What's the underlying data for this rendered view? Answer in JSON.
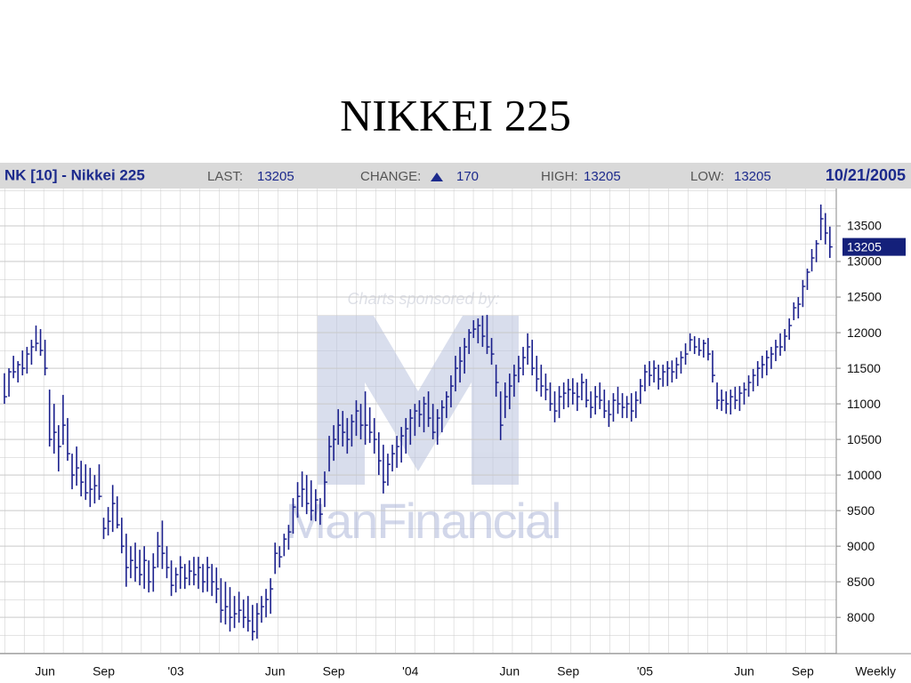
{
  "slide_title": "NIKKEI 225",
  "header": {
    "symbol": "NK [10] - Nikkei 225",
    "last_label": "LAST:",
    "last": 13205,
    "change_label": "CHANGE:",
    "change": 170,
    "high_label": "HIGH:",
    "high": 13205,
    "low_label": "LOW:",
    "low": 13205,
    "date": "10/21/2005"
  },
  "watermark": {
    "sponsor": "Charts sponsored by:",
    "brand": "ManFinancial"
  },
  "chart_data": {
    "type": "hlc",
    "color": "#1a1f8c",
    "grid": true,
    "x_axis_note": "Weekly",
    "price_marker": 13205,
    "ylim": [
      7490,
      14025
    ],
    "yticks": [
      8000,
      8500,
      9000,
      9500,
      10000,
      10500,
      11000,
      11500,
      12000,
      12500,
      13000,
      13500
    ],
    "categories": [
      null,
      null,
      null,
      null,
      null,
      null,
      null,
      null,
      null,
      "Jun",
      null,
      null,
      null,
      null,
      null,
      null,
      null,
      null,
      null,
      null,
      null,
      null,
      "Sep",
      null,
      null,
      null,
      null,
      null,
      null,
      null,
      null,
      null,
      null,
      null,
      null,
      null,
      null,
      null,
      "'03",
      null,
      null,
      null,
      null,
      null,
      null,
      null,
      null,
      null,
      null,
      null,
      null,
      null,
      null,
      null,
      null,
      null,
      null,
      null,
      null,
      null,
      "Jun",
      null,
      null,
      null,
      null,
      null,
      null,
      null,
      null,
      null,
      null,
      null,
      null,
      "Sep",
      null,
      null,
      null,
      null,
      null,
      null,
      null,
      null,
      null,
      null,
      null,
      null,
      null,
      null,
      null,
      null,
      "'04",
      null,
      null,
      null,
      null,
      null,
      null,
      null,
      null,
      null,
      null,
      null,
      null,
      null,
      null,
      null,
      null,
      null,
      null,
      null,
      null,
      null,
      "Jun",
      null,
      null,
      null,
      null,
      null,
      null,
      null,
      null,
      null,
      null,
      null,
      null,
      "Sep",
      null,
      null,
      null,
      null,
      null,
      null,
      null,
      null,
      null,
      null,
      null,
      null,
      null,
      null,
      null,
      null,
      "'05",
      null,
      null,
      null,
      null,
      null,
      null,
      null,
      null,
      null,
      null,
      null,
      null,
      null,
      null,
      null,
      null,
      null,
      null,
      null,
      null,
      null,
      "Jun",
      null,
      null,
      null,
      null,
      null,
      null,
      null,
      null,
      null,
      null,
      null,
      null,
      "Sep",
      null,
      null,
      null,
      null,
      null,
      null
    ],
    "high": [
      11430,
      11500,
      11675,
      11600,
      11750,
      11800,
      11900,
      12100,
      12050,
      11900,
      11200,
      11000,
      10700,
      11125,
      10800,
      10300,
      10400,
      10200,
      10150,
      10100,
      10000,
      10150,
      9400,
      9550,
      9860,
      9700,
      9400,
      9175,
      9000,
      9050,
      8950,
      9000,
      8800,
      8900,
      9200,
      9360,
      9000,
      8800,
      8700,
      8860,
      8750,
      8800,
      8850,
      8850,
      8750,
      8850,
      8750,
      8700,
      8550,
      8500,
      8425,
      8300,
      8360,
      8250,
      8300,
      8175,
      8200,
      8300,
      8400,
      8550,
      9050,
      9000,
      9175,
      9300,
      9675,
      9900,
      10050,
      10000,
      9925,
      9800,
      9675,
      10050,
      10550,
      10700,
      10925,
      10900,
      10800,
      10850,
      11050,
      11000,
      11175,
      10950,
      10800,
      10600,
      10425,
      10300,
      10425,
      10550,
      10675,
      10800,
      10925,
      11000,
      11050,
      11100,
      11175,
      11000,
      10925,
      11050,
      11175,
      11400,
      11675,
      11800,
      11925,
      12050,
      12175,
      12200,
      12240,
      12250,
      11925,
      11550,
      11175,
      11300,
      11425,
      11550,
      11675,
      11800,
      11990,
      11900,
      11675,
      11550,
      11425,
      11300,
      11175,
      11250,
      11300,
      11350,
      11360,
      11300,
      11425,
      11350,
      11175,
      11250,
      11300,
      11200,
      11050,
      11150,
      11240,
      11150,
      11110,
      11150,
      11175,
      11350,
      11550,
      11600,
      11610,
      11550,
      11550,
      11600,
      11610,
      11650,
      11740,
      11850,
      11990,
      11950,
      11925,
      11900,
      11925,
      11750,
      11300,
      11200,
      11175,
      11200,
      11240,
      11250,
      11300,
      11400,
      11490,
      11600,
      11675,
      11750,
      11800,
      11900,
      11990,
      12050,
      12200,
      12425,
      12500,
      12740,
      12900,
      13175,
      13300,
      13800,
      13680,
      13490
    ],
    "low": [
      11000,
      11100,
      11360,
      11300,
      11400,
      11425,
      11550,
      11740,
      11675,
      11400,
      10400,
      10300,
      10050,
      10425,
      10200,
      9800,
      9850,
      9700,
      9650,
      9550,
      9600,
      9650,
      9100,
      9150,
      9200,
      9250,
      8900,
      8430,
      8550,
      8500,
      8450,
      8400,
      8350,
      8360,
      8700,
      8680,
      8550,
      8300,
      8350,
      8400,
      8400,
      8450,
      8450,
      8400,
      8350,
      8360,
      8300,
      8200,
      7925,
      7900,
      7800,
      7850,
      7925,
      7850,
      7800,
      7675,
      7700,
      7925,
      8000,
      8050,
      8610,
      8700,
      8860,
      8950,
      9175,
      9400,
      9550,
      9450,
      9360,
      9350,
      9300,
      9550,
      10050,
      10200,
      10425,
      10400,
      10300,
      10400,
      10550,
      10500,
      10425,
      10450,
      10300,
      10000,
      9740,
      9850,
      10050,
      10100,
      10175,
      10300,
      10425,
      10550,
      10675,
      10600,
      10675,
      10500,
      10425,
      10600,
      10800,
      10950,
      11175,
      11300,
      11425,
      11700,
      11925,
      11850,
      11800,
      11700,
      11550,
      11100,
      10490,
      10800,
      10925,
      11100,
      11300,
      11400,
      11550,
      11400,
      11175,
      11100,
      11050,
      10900,
      10740,
      10800,
      10925,
      10950,
      10990,
      10900,
      11050,
      10950,
      10800,
      10850,
      10925,
      10800,
      10675,
      10750,
      10860,
      10800,
      10800,
      10750,
      10800,
      11000,
      11175,
      11250,
      11300,
      11200,
      11240,
      11250,
      11300,
      11350,
      11425,
      11550,
      11740,
      11700,
      11675,
      11650,
      11610,
      11300,
      10925,
      10900,
      10860,
      10850,
      10925,
      10900,
      10990,
      11100,
      11175,
      11250,
      11360,
      11400,
      11490,
      11600,
      11675,
      11740,
      11900,
      12175,
      12200,
      12360,
      12600,
      12860,
      12990,
      13300,
      13240,
      13050
    ],
    "close": [
      11100,
      11450,
      11450,
      11550,
      11500,
      11700,
      11800,
      11850,
      11750,
      11500,
      10500,
      10600,
      10400,
      10700,
      10300,
      10000,
      10100,
      9900,
      9750,
      9800,
      9850,
      9700,
      9250,
      9350,
      9600,
      9300,
      9000,
      8700,
      8800,
      8700,
      8600,
      8800,
      8500,
      8700,
      9000,
      8900,
      8700,
      8450,
      8600,
      8700,
      8550,
      8650,
      8600,
      8700,
      8500,
      8700,
      8500,
      8400,
      8100,
      8150,
      8000,
      8050,
      8100,
      8000,
      7950,
      7800,
      8050,
      8150,
      8250,
      8400,
      8900,
      8850,
      9100,
      9200,
      9550,
      9700,
      9800,
      9600,
      9500,
      9650,
      9450,
      9900,
      10400,
      10500,
      10700,
      10600,
      10500,
      10750,
      10900,
      10700,
      10700,
      10600,
      10500,
      10200,
      9900,
      10150,
      10300,
      10400,
      10550,
      10650,
      10800,
      10900,
      10850,
      11000,
      10800,
      10600,
      10800,
      10950,
      11100,
      11250,
      11500,
      11600,
      11800,
      12000,
      12050,
      12100,
      11950,
      11800,
      11700,
      11300,
      10700,
      11100,
      11250,
      11400,
      11500,
      11650,
      11800,
      11500,
      11350,
      11250,
      11200,
      11000,
      10900,
      11100,
      11150,
      11200,
      11150,
      11100,
      11300,
      11050,
      10950,
      11100,
      11050,
      10900,
      10850,
      11050,
      11000,
      10950,
      11000,
      10900,
      11050,
      11250,
      11450,
      11400,
      11500,
      11350,
      11450,
      11500,
      11450,
      11550,
      11650,
      11700,
      11900,
      11800,
      11750,
      11850,
      11700,
      11400,
      11050,
      11050,
      11000,
      11100,
      11050,
      11150,
      11200,
      11300,
      11400,
      11500,
      11550,
      11650,
      11700,
      11800,
      11800,
      11950,
      12100,
      12350,
      12400,
      12650,
      12850,
      13050,
      13250,
      13600,
      13400,
      13205
    ]
  }
}
